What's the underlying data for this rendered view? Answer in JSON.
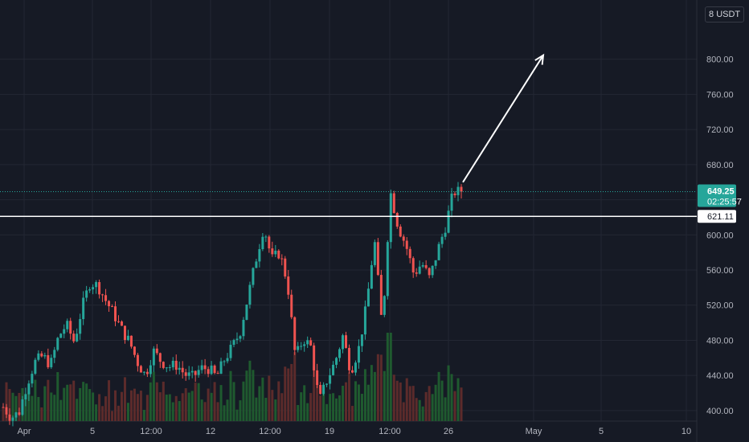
{
  "header": {
    "currency": "USDT",
    "settings_glyph": "8"
  },
  "colors": {
    "background": "#161a25",
    "grid": "#232733",
    "up": "#26a69a",
    "down": "#ef5350",
    "up_volume": "#1f5a2f",
    "down_volume": "#5c2b2b",
    "resistance_line": "#ffffff",
    "last_price_badge": "#26a69a",
    "arrow": "#ffffff"
  },
  "chart_data": {
    "type": "candlestick",
    "title": "",
    "xlabel": "",
    "ylabel": "",
    "ylim": [
      388,
      840
    ],
    "x_axis_labels": [
      "Apr",
      "5",
      "12:00",
      "12",
      "12:00",
      "19",
      "12:00",
      "26",
      "May",
      "5",
      "10"
    ],
    "y_ticks": [
      400,
      440,
      480,
      520,
      560,
      600,
      640,
      680,
      720,
      760,
      800
    ],
    "y_tick_labels": [
      "400.00",
      "440.00",
      "480.00",
      "520.00",
      "560.00",
      "600.00",
      "640.00",
      "680.00",
      "720.00",
      "760.00",
      "800.00"
    ],
    "grid": true,
    "last_price": {
      "value": 649.25,
      "label": "649.25",
      "countdown": "02:25:57"
    },
    "resistance_line": {
      "value": 621.11,
      "label": "621.11"
    },
    "arrow_annotation": {
      "from": 649,
      "to": 800
    },
    "price_path": [
      404,
      392,
      398,
      430,
      455,
      462,
      452,
      484,
      498,
      478,
      518,
      546,
      542,
      525,
      510,
      492,
      478,
      455,
      440,
      468,
      456,
      450,
      452,
      441,
      438,
      448,
      448,
      438,
      458,
      472,
      490,
      530,
      572,
      610,
      572,
      580,
      545,
      460,
      482,
      472,
      410,
      435,
      455,
      485,
      445,
      470,
      520,
      595,
      492,
      650,
      610,
      588,
      555,
      568,
      550,
      582,
      610,
      649,
      649
    ],
    "volume_bars_note": ""
  }
}
